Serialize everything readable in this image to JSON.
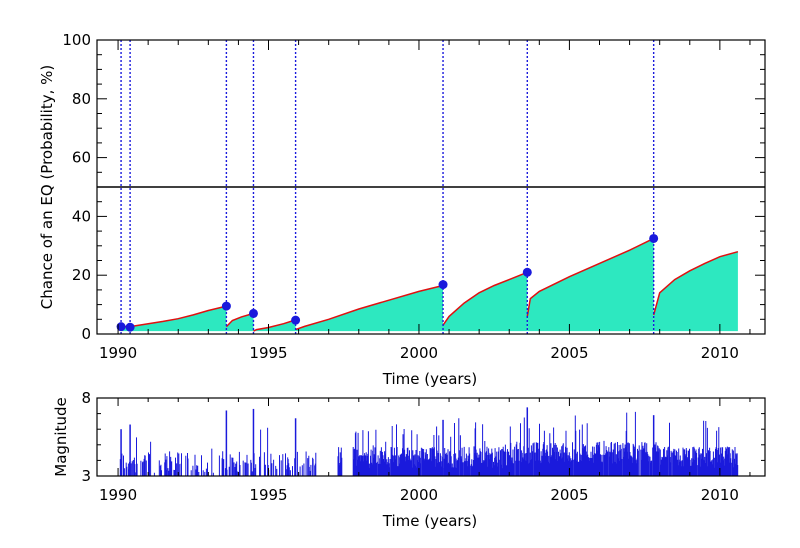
{
  "chart_data": [
    {
      "type": "area",
      "xlabel": "Time (years)",
      "ylabel": "Chance of an EQ (Probability, %)",
      "xlim": [
        1989.3,
        2011.5
      ],
      "ylim": [
        0,
        100
      ],
      "xticks": [
        1990,
        1995,
        2000,
        2005,
        2010
      ],
      "yticks": [
        0,
        20,
        40,
        60,
        80,
        100
      ],
      "threshold": 50,
      "colors": {
        "fill": "#2de8c0",
        "line": "#e01010",
        "event_line": "#1a1adc",
        "marker": "#1a1adc",
        "threshold": "#000000"
      },
      "segments": [
        {
          "x": [
            1990.1,
            1990.4
          ],
          "y": [
            2.5,
            2.5
          ]
        },
        {
          "x": [
            1990.4,
            1991.0,
            1991.5,
            1992.0,
            1992.5,
            1993.0,
            1993.6
          ],
          "y": [
            2.5,
            3.5,
            4.3,
            5.2,
            6.5,
            8.0,
            9.5
          ]
        },
        {
          "x": [
            1993.6,
            1993.8,
            1994.1,
            1994.5
          ],
          "y": [
            2.5,
            4.6,
            5.8,
            7.0
          ]
        },
        {
          "x": [
            1994.5,
            1994.6,
            1995.0,
            1995.5,
            1995.9
          ],
          "y": [
            1.0,
            1.5,
            2.2,
            3.5,
            4.8
          ]
        },
        {
          "x": [
            1995.9,
            1996.2,
            1997.0,
            1998.0,
            1999.0,
            2000.0,
            2000.8
          ],
          "y": [
            1.5,
            2.6,
            5.0,
            8.5,
            11.5,
            14.5,
            16.5
          ]
        },
        {
          "x": [
            2000.8,
            2001.0,
            2001.5,
            2002.0,
            2002.5,
            2003.0,
            2003.6
          ],
          "y": [
            3.0,
            6.0,
            10.5,
            14.0,
            16.5,
            18.5,
            21.0
          ]
        },
        {
          "x": [
            2003.6,
            2003.7,
            2004.0,
            2005.0,
            2006.0,
            2007.0,
            2007.8
          ],
          "y": [
            6.0,
            12.0,
            14.5,
            19.5,
            24.0,
            28.5,
            32.5
          ]
        },
        {
          "x": [
            2007.8,
            2008.0,
            2008.5,
            2009.0,
            2009.5,
            2010.0,
            2010.6
          ],
          "y": [
            6.5,
            14.0,
            18.5,
            21.5,
            24.0,
            26.3,
            28.0
          ]
        }
      ],
      "events": [
        {
          "x": 1990.1,
          "y": 2.5
        },
        {
          "x": 1990.4,
          "y": 2.3
        },
        {
          "x": 1993.6,
          "y": 9.5
        },
        {
          "x": 1994.5,
          "y": 7.0
        },
        {
          "x": 1995.9,
          "y": 4.7
        },
        {
          "x": 2000.8,
          "y": 16.8
        },
        {
          "x": 2003.6,
          "y": 21.0
        },
        {
          "x": 2007.8,
          "y": 32.5
        }
      ]
    },
    {
      "type": "bar",
      "xlabel": "Time (years)",
      "ylabel": "Magnitude",
      "xlim": [
        1989.3,
        2011.5
      ],
      "ylim": [
        3,
        8
      ],
      "xticks": [
        1990,
        1995,
        2000,
        2005,
        2010
      ],
      "yticks": [
        3,
        8
      ],
      "colors": {
        "bar": "#1a1adc"
      },
      "peaks": [
        {
          "x": 1990.1,
          "y": 6.0
        },
        {
          "x": 1990.4,
          "y": 6.3
        },
        {
          "x": 1993.6,
          "y": 7.2
        },
        {
          "x": 1994.5,
          "y": 7.3
        },
        {
          "x": 1995.9,
          "y": 6.7
        },
        {
          "x": 2000.8,
          "y": 6.6
        },
        {
          "x": 2003.6,
          "y": 7.4
        },
        {
          "x": 2007.8,
          "y": 6.9
        }
      ],
      "gaps": [
        [
          1989.3,
          1990.05
        ],
        [
          1996.6,
          1997.3
        ],
        [
          1997.45,
          1997.8
        ],
        [
          2010.6,
          2011.5
        ]
      ]
    }
  ]
}
